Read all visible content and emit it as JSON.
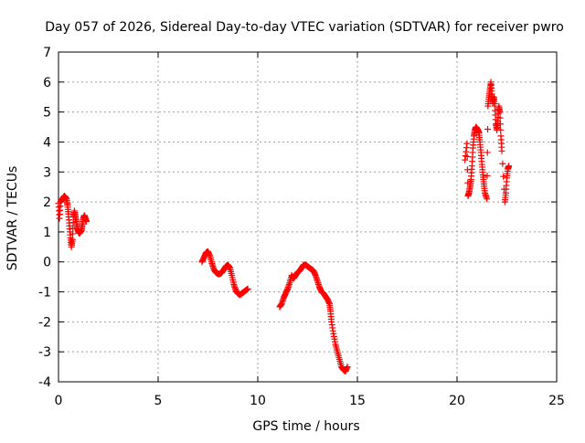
{
  "chart_data": {
    "type": "scatter",
    "title": "Day 057 of 2026, Sidereal Day-to-day VTEC variation (SDTVAR) for receiver pwro",
    "xlabel": "GPS time / hours",
    "ylabel": "SDTVAR / TECUs",
    "xlim": [
      0,
      25
    ],
    "ylim": [
      -4,
      7
    ],
    "xticks": [
      0,
      5,
      10,
      15,
      20,
      25
    ],
    "yticks": [
      -4,
      -3,
      -2,
      -1,
      0,
      1,
      2,
      3,
      4,
      5,
      6,
      7
    ],
    "grid": true,
    "legend": "none",
    "marker": "plus",
    "series": [
      {
        "color": "#ff0000",
        "segments": [
          [
            [
              0.0,
              1.95
            ],
            [
              0.05,
              1.45
            ],
            [
              0.1,
              2.0
            ],
            [
              0.15,
              2.05
            ],
            [
              0.2,
              2.1
            ],
            [
              0.25,
              2.15
            ],
            [
              0.3,
              2.2
            ],
            [
              0.35,
              2.15
            ],
            [
              0.4,
              2.1
            ],
            [
              0.45,
              1.9
            ],
            [
              0.5,
              1.6
            ],
            [
              0.55,
              1.2
            ],
            [
              0.6,
              0.8
            ],
            [
              0.65,
              0.5
            ],
            [
              0.7,
              0.75
            ],
            [
              0.75,
              1.5
            ],
            [
              0.8,
              1.7
            ],
            [
              0.85,
              1.5
            ],
            [
              0.9,
              1.3
            ],
            [
              0.95,
              1.1
            ],
            [
              1.0,
              1.0
            ],
            [
              1.05,
              0.95
            ],
            [
              1.1,
              1.0
            ],
            [
              1.15,
              1.05
            ],
            [
              1.2,
              1.25
            ],
            [
              1.25,
              1.45
            ],
            [
              1.3,
              1.55
            ],
            [
              1.35,
              1.45
            ],
            [
              1.4,
              1.35
            ]
          ],
          [
            [
              7.2,
              0.0
            ],
            [
              7.3,
              0.15
            ],
            [
              7.4,
              0.3
            ],
            [
              7.5,
              0.35
            ],
            [
              7.6,
              0.2
            ],
            [
              7.7,
              -0.05
            ],
            [
              7.8,
              -0.25
            ],
            [
              7.9,
              -0.35
            ],
            [
              8.0,
              -0.4
            ],
            [
              8.1,
              -0.4
            ],
            [
              8.2,
              -0.35
            ],
            [
              8.3,
              -0.25
            ],
            [
              8.4,
              -0.15
            ],
            [
              8.5,
              -0.1
            ],
            [
              8.6,
              -0.2
            ],
            [
              8.7,
              -0.45
            ],
            [
              8.8,
              -0.75
            ],
            [
              8.9,
              -0.95
            ],
            [
              9.0,
              -1.05
            ],
            [
              9.1,
              -1.1
            ],
            [
              9.2,
              -1.05
            ],
            [
              9.3,
              -1.0
            ],
            [
              9.4,
              -0.95
            ],
            [
              9.5,
              -0.9
            ]
          ],
          [
            [
              11.1,
              -1.5
            ],
            [
              11.2,
              -1.4
            ],
            [
              11.3,
              -1.2
            ],
            [
              11.4,
              -1.05
            ],
            [
              11.5,
              -0.9
            ],
            [
              11.6,
              -0.7
            ],
            [
              11.7,
              -0.45
            ],
            [
              11.8,
              -0.55
            ],
            [
              11.9,
              -0.45
            ],
            [
              12.0,
              -0.35
            ],
            [
              12.1,
              -0.3
            ],
            [
              12.2,
              -0.2
            ],
            [
              12.3,
              -0.1
            ],
            [
              12.4,
              -0.1
            ],
            [
              12.5,
              -0.15
            ],
            [
              12.6,
              -0.2
            ],
            [
              12.7,
              -0.25
            ],
            [
              12.8,
              -0.3
            ],
            [
              12.9,
              -0.45
            ],
            [
              13.0,
              -0.65
            ],
            [
              13.1,
              -0.85
            ],
            [
              13.2,
              -1.0
            ],
            [
              13.3,
              -1.05
            ],
            [
              13.4,
              -1.15
            ],
            [
              13.5,
              -1.25
            ],
            [
              13.6,
              -1.4
            ],
            [
              13.65,
              -1.65
            ],
            [
              13.7,
              -2.0
            ],
            [
              13.8,
              -2.4
            ],
            [
              13.9,
              -2.75
            ],
            [
              14.0,
              -3.0
            ],
            [
              14.1,
              -3.25
            ],
            [
              14.2,
              -3.5
            ],
            [
              14.3,
              -3.6
            ],
            [
              14.4,
              -3.65
            ],
            [
              14.5,
              -3.5
            ]
          ],
          [
            [
              20.4,
              3.4
            ],
            [
              20.5,
              3.95
            ],
            [
              20.55,
              2.2
            ],
            [
              20.6,
              2.3
            ],
            [
              20.65,
              2.5
            ],
            [
              20.7,
              2.75
            ],
            [
              20.75,
              3.2
            ],
            [
              20.8,
              3.8
            ],
            [
              20.85,
              4.2
            ],
            [
              20.9,
              4.4
            ],
            [
              20.95,
              4.5
            ],
            [
              21.0,
              4.45
            ],
            [
              21.05,
              4.4
            ],
            [
              21.1,
              4.3
            ],
            [
              21.15,
              4.0
            ],
            [
              21.2,
              3.65
            ],
            [
              21.25,
              3.25
            ],
            [
              21.3,
              2.9
            ],
            [
              21.35,
              2.6
            ],
            [
              21.4,
              2.3
            ],
            [
              21.5,
              2.1
            ],
            [
              21.55,
              5.2
            ],
            [
              21.6,
              5.5
            ],
            [
              21.65,
              5.75
            ],
            [
              21.7,
              6.0
            ],
            [
              21.75,
              5.6
            ],
            [
              21.8,
              5.3
            ],
            [
              21.85,
              5.5
            ],
            [
              21.9,
              5.2
            ],
            [
              21.95,
              4.6
            ],
            [
              22.0,
              4.4
            ],
            [
              22.05,
              4.7
            ],
            [
              22.1,
              5.2
            ],
            [
              22.15,
              5.0
            ],
            [
              22.2,
              4.2
            ],
            [
              22.25,
              3.7
            ],
            [
              22.4,
              2.0
            ],
            [
              22.45,
              2.3
            ],
            [
              22.5,
              2.8
            ],
            [
              22.55,
              3.1
            ],
            [
              22.6,
              3.2
            ]
          ]
        ]
      }
    ]
  }
}
